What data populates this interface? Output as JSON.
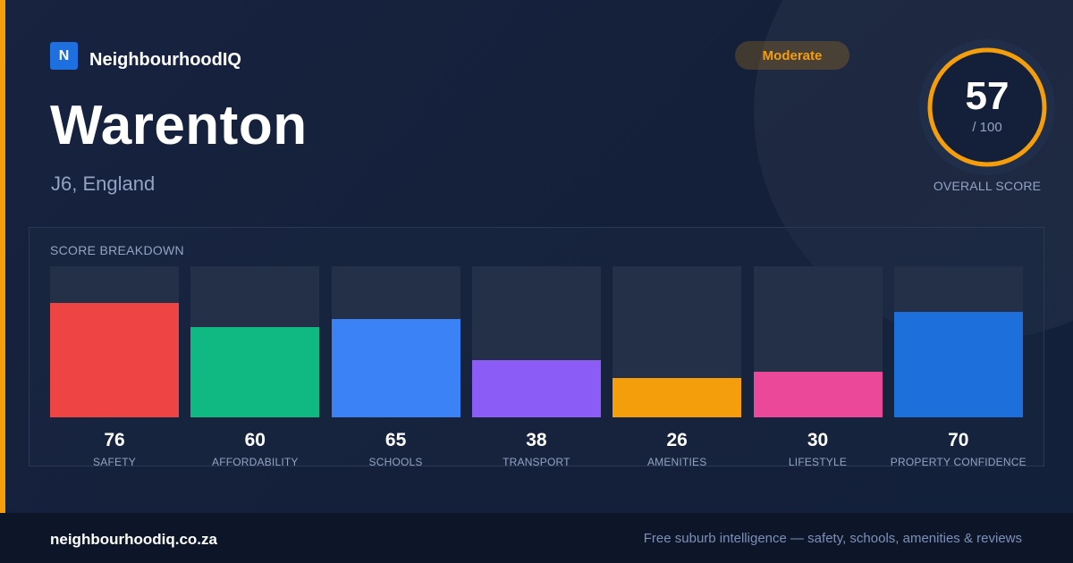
{
  "brand": {
    "logo_letter": "N",
    "name": "NeighbourhoodIQ"
  },
  "suburb": {
    "name": "Warenton",
    "location": "J6, England"
  },
  "badge": {
    "label": "Moderate"
  },
  "overall": {
    "score": "57",
    "max": "/ 100",
    "label": "OVERALL SCORE",
    "fraction": 0.57
  },
  "colors": {
    "accent": "#f59e0b",
    "background": "#15213b",
    "footer": "#0d1628"
  },
  "breakdown": {
    "title": "SCORE BREAKDOWN",
    "items": [
      {
        "label": "SAFETY",
        "value": "76",
        "score": 76,
        "color": "#ef4444"
      },
      {
        "label": "AFFORDABILITY",
        "value": "60",
        "score": 60,
        "color": "#10b981"
      },
      {
        "label": "SCHOOLS",
        "value": "65",
        "score": 65,
        "color": "#3b82f6"
      },
      {
        "label": "TRANSPORT",
        "value": "38",
        "score": 38,
        "color": "#8b5cf6"
      },
      {
        "label": "AMENITIES",
        "value": "26",
        "score": 26,
        "color": "#f59e0b"
      },
      {
        "label": "LIFESTYLE",
        "value": "30",
        "score": 30,
        "color": "#ec4899"
      },
      {
        "label": "PROPERTY CONFIDENCE",
        "value": "70",
        "score": 70,
        "color": "#1d6fdc"
      }
    ]
  },
  "footer": {
    "domain": "neighbourhoodiq.co.za",
    "tagline": "Free suburb intelligence — safety, schools, amenities & reviews"
  }
}
